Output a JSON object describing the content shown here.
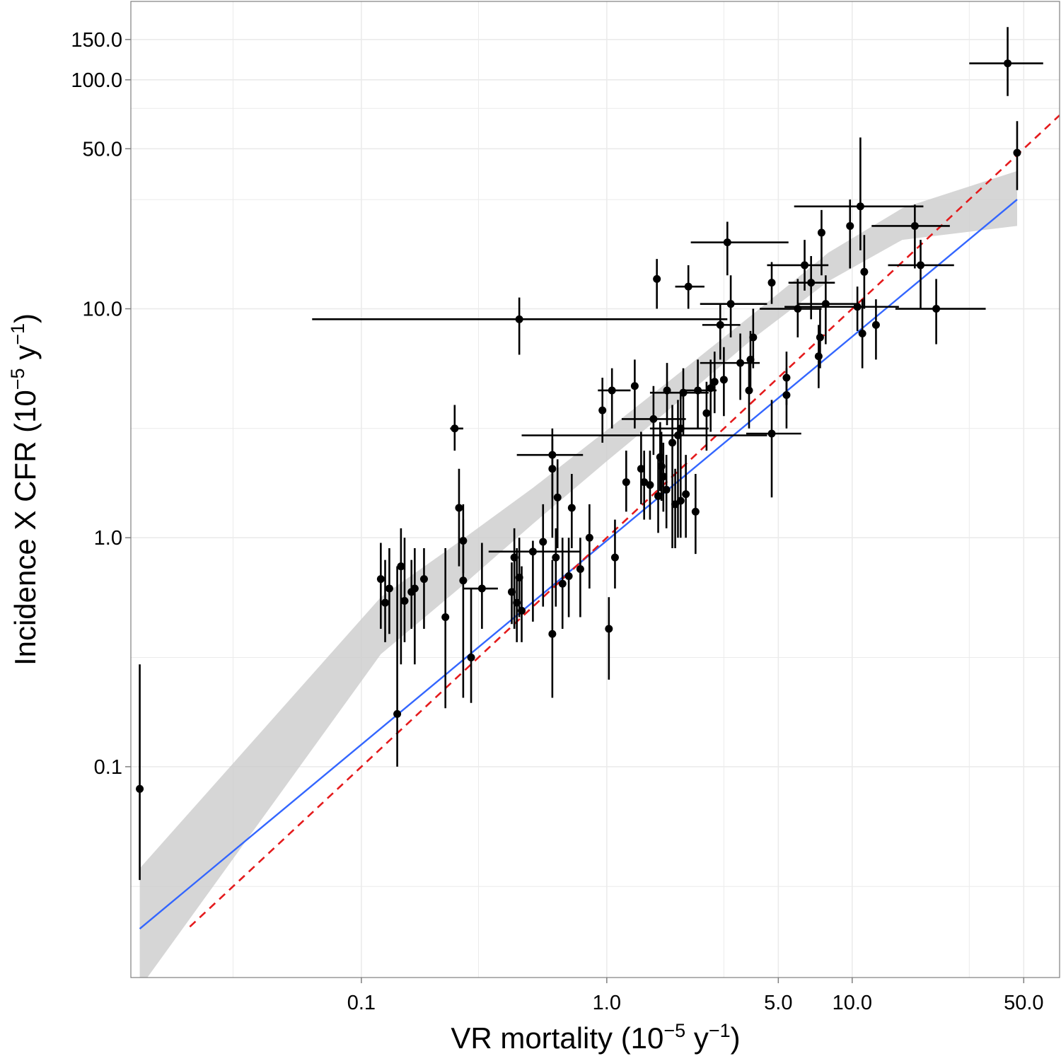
{
  "chart_data": {
    "type": "scatter",
    "xscale": "log10",
    "yscale": "log10",
    "xlim": [
      0.0115,
      70
    ],
    "ylim": [
      0.012,
      220
    ],
    "x_ticks": [
      0.1,
      1.0,
      5.0,
      10.0,
      50.0
    ],
    "x_tick_labels": [
      "0.1",
      "1.0",
      "5.0",
      "10.0",
      "50.0"
    ],
    "y_ticks": [
      0.1,
      1.0,
      10.0,
      50.0,
      100.0,
      150.0
    ],
    "y_tick_labels": [
      "0.1",
      "1.0",
      "10.0",
      "50.0",
      "100.0",
      "150.0"
    ],
    "xlabel": {
      "main": "VR mortality (10",
      "exp1": "−5",
      "mid": " y",
      "exp2": "−1",
      "end": ")"
    },
    "ylabel": {
      "main": "Incidence X CFR (10",
      "exp1": "−5",
      "mid": " y",
      "exp2": "−1",
      "end": ")"
    },
    "grid": true,
    "colors": {
      "points": "#000000",
      "fit_line": "#3366ff",
      "confidence_band": "#cccccc",
      "identity_line": "#e41a1c",
      "grid": "#ebebeb",
      "panel_border": "#7f7f7f"
    },
    "fit_line": {
      "x": [
        0.0125,
        47
      ],
      "y": [
        0.0196,
        30.0
      ]
    },
    "confidence_band": {
      "x": [
        0.0125,
        0.12,
        0.25,
        0.5,
        1.0,
        2.0,
        4.0,
        8.0,
        16.0,
        47.0
      ],
      "lower": [
        0.0108,
        0.31,
        0.6,
        1.15,
        2.16,
        4.0,
        7.5,
        13.2,
        20.0,
        23.0
      ],
      "upper": [
        0.036,
        0.55,
        0.96,
        1.65,
        2.95,
        5.3,
        9.6,
        17.6,
        27.5,
        40.0
      ]
    },
    "identity_line": {
      "x": [
        0.02,
        70
      ],
      "y": [
        0.02,
        70
      ]
    },
    "points": [
      {
        "x": 0.0125,
        "y": 0.08,
        "ylo": 0.032,
        "yhi": 0.28
      },
      {
        "x": 0.12,
        "y": 0.66,
        "ylo": 0.4,
        "yhi": 0.95
      },
      {
        "x": 0.125,
        "y": 0.52,
        "ylo": 0.35,
        "yhi": 0.8
      },
      {
        "x": 0.13,
        "y": 0.6,
        "ylo": 0.38,
        "yhi": 0.9
      },
      {
        "x": 0.14,
        "y": 0.17,
        "ylo": 0.1,
        "yhi": 0.75
      },
      {
        "x": 0.145,
        "y": 0.75,
        "ylo": 0.28,
        "yhi": 1.1
      },
      {
        "x": 0.15,
        "y": 0.53,
        "ylo": 0.35,
        "yhi": 1.0
      },
      {
        "x": 0.16,
        "y": 0.58,
        "ylo": 0.4,
        "yhi": 0.8
      },
      {
        "x": 0.165,
        "y": 0.6,
        "ylo": 0.28,
        "yhi": 0.9
      },
      {
        "x": 0.18,
        "y": 0.66,
        "ylo": 0.4,
        "yhi": 0.9
      },
      {
        "x": 0.22,
        "y": 0.45,
        "ylo": 0.18,
        "yhi": 0.9
      },
      {
        "x": 0.24,
        "y": 3.0,
        "ylo": 2.4,
        "yhi": 3.8,
        "xlo": 0.23,
        "xhi": 0.26
      },
      {
        "x": 0.25,
        "y": 1.35,
        "ylo": 0.75,
        "yhi": 2.0
      },
      {
        "x": 0.26,
        "y": 0.97,
        "ylo": 0.7,
        "yhi": 1.4
      },
      {
        "x": 0.26,
        "y": 0.65,
        "ylo": 0.2,
        "yhi": 1.2
      },
      {
        "x": 0.28,
        "y": 0.3,
        "ylo": 0.19,
        "yhi": 0.6
      },
      {
        "x": 0.31,
        "y": 0.6,
        "ylo": 0.4,
        "yhi": 0.95,
        "xlo": 0.26,
        "xhi": 0.36
      },
      {
        "x": 0.41,
        "y": 0.58,
        "ylo": 0.42,
        "yhi": 0.78
      },
      {
        "x": 0.42,
        "y": 0.82,
        "ylo": 0.4,
        "yhi": 1.1
      },
      {
        "x": 0.43,
        "y": 0.52,
        "ylo": 0.35,
        "yhi": 0.9
      },
      {
        "x": 0.44,
        "y": 9.0,
        "ylo": 6.3,
        "yhi": 11.2,
        "xlo": 0.063,
        "xhi": 3.1
      },
      {
        "x": 0.44,
        "y": 0.67,
        "ylo": 0.45,
        "yhi": 1.0
      },
      {
        "x": 0.45,
        "y": 0.48,
        "ylo": 0.35,
        "yhi": 0.75
      },
      {
        "x": 0.5,
        "y": 0.87,
        "ylo": 0.43,
        "yhi": 0.97,
        "xlo": 0.33,
        "xhi": 0.78
      },
      {
        "x": 0.55,
        "y": 0.96,
        "ylo": 0.5,
        "yhi": 1.4
      },
      {
        "x": 0.6,
        "y": 2.3,
        "ylo": 1.5,
        "yhi": 2.7,
        "xlo": 0.43,
        "xhi": 0.8
      },
      {
        "x": 0.6,
        "y": 2.0,
        "ylo": 1.0,
        "yhi": 3.0
      },
      {
        "x": 0.6,
        "y": 0.38,
        "ylo": 0.2,
        "yhi": 0.8
      },
      {
        "x": 0.62,
        "y": 0.82,
        "ylo": 0.5,
        "yhi": 1.1
      },
      {
        "x": 0.63,
        "y": 1.5,
        "ylo": 0.9,
        "yhi": 2.2
      },
      {
        "x": 0.66,
        "y": 0.63,
        "ylo": 0.4,
        "yhi": 1.0
      },
      {
        "x": 0.7,
        "y": 0.68,
        "ylo": 0.45,
        "yhi": 1.0
      },
      {
        "x": 0.72,
        "y": 1.35,
        "ylo": 0.9,
        "yhi": 1.9
      },
      {
        "x": 0.78,
        "y": 0.73,
        "ylo": 0.45,
        "yhi": 1.0
      },
      {
        "x": 0.85,
        "y": 1.0,
        "ylo": 0.6,
        "yhi": 1.4
      },
      {
        "x": 0.96,
        "y": 3.6,
        "ylo": 2.6,
        "yhi": 5.0
      },
      {
        "x": 1.02,
        "y": 0.4,
        "ylo": 0.24,
        "yhi": 0.55
      },
      {
        "x": 1.05,
        "y": 4.4,
        "ylo": 3.0,
        "yhi": 5.5,
        "xlo": 0.92,
        "xhi": 1.25
      },
      {
        "x": 1.08,
        "y": 0.82,
        "ylo": 0.6,
        "yhi": 1.2
      },
      {
        "x": 1.2,
        "y": 1.75,
        "ylo": 1.3,
        "yhi": 2.4
      },
      {
        "x": 1.3,
        "y": 4.6,
        "ylo": 3.0,
        "yhi": 6.0
      },
      {
        "x": 1.38,
        "y": 2.0,
        "ylo": 1.4,
        "yhi": 2.9
      },
      {
        "x": 1.42,
        "y": 1.75,
        "ylo": 1.2,
        "yhi": 2.4
      },
      {
        "x": 1.5,
        "y": 1.7,
        "ylo": 1.2,
        "yhi": 2.4
      },
      {
        "x": 1.55,
        "y": 3.3,
        "ylo": 2.3,
        "yhi": 4.6,
        "xlo": 1.15,
        "xhi": 2.1
      },
      {
        "x": 1.6,
        "y": 13.5,
        "ylo": 10.0,
        "yhi": 16.5
      },
      {
        "x": 1.62,
        "y": 1.52,
        "ylo": 1.05,
        "yhi": 2.2
      },
      {
        "x": 1.65,
        "y": 2.25,
        "ylo": 1.6,
        "yhi": 3.2
      },
      {
        "x": 1.67,
        "y": 2.05,
        "ylo": 1.45,
        "yhi": 2.9
      },
      {
        "x": 1.7,
        "y": 1.85,
        "ylo": 1.3,
        "yhi": 2.6
      },
      {
        "x": 1.75,
        "y": 1.62,
        "ylo": 1.1,
        "yhi": 2.3
      },
      {
        "x": 1.76,
        "y": 4.4,
        "ylo": 3.1,
        "yhi": 5.8
      },
      {
        "x": 1.85,
        "y": 2.6,
        "ylo": 0.9,
        "yhi": 3.8
      },
      {
        "x": 1.9,
        "y": 1.4,
        "ylo": 0.9,
        "yhi": 2.0
      },
      {
        "x": 1.95,
        "y": 2.8,
        "ylo": 1.0,
        "yhi": 4.0,
        "xlo": 0.45,
        "xhi": 4.5
      },
      {
        "x": 2.0,
        "y": 1.45,
        "ylo": 1.0,
        "yhi": 2.1
      },
      {
        "x": 2.0,
        "y": 3.0,
        "ylo": 2.0,
        "yhi": 4.3,
        "xlo": 1.5,
        "xhi": 2.6
      },
      {
        "x": 2.05,
        "y": 4.3,
        "ylo": 2.8,
        "yhi": 5.5,
        "xlo": 1.5,
        "xhi": 2.6
      },
      {
        "x": 2.1,
        "y": 1.55,
        "ylo": 1.0,
        "yhi": 2.3
      },
      {
        "x": 2.15,
        "y": 12.5,
        "ylo": 10.0,
        "yhi": 15.5,
        "xlo": 1.9,
        "xhi": 2.5
      },
      {
        "x": 2.3,
        "y": 1.3,
        "ylo": 0.85,
        "yhi": 1.9
      },
      {
        "x": 2.35,
        "y": 4.4,
        "ylo": 3.0,
        "yhi": 6.0,
        "xlo": 2.0,
        "xhi": 2.8
      },
      {
        "x": 2.55,
        "y": 3.5,
        "ylo": 2.4,
        "yhi": 4.8
      },
      {
        "x": 2.65,
        "y": 4.5,
        "ylo": 2.9,
        "yhi": 6.0
      },
      {
        "x": 2.75,
        "y": 4.8,
        "ylo": 3.5,
        "yhi": 6.5
      },
      {
        "x": 2.9,
        "y": 8.5,
        "ylo": 6.0,
        "yhi": 10.5,
        "xlo": 2.45,
        "xhi": 3.5
      },
      {
        "x": 3.0,
        "y": 4.9,
        "ylo": 3.4,
        "yhi": 6.8
      },
      {
        "x": 3.1,
        "y": 19.5,
        "ylo": 14.0,
        "yhi": 24.0,
        "xlo": 2.2,
        "xhi": 5.5
      },
      {
        "x": 3.2,
        "y": 10.5,
        "ylo": 7.5,
        "yhi": 14.0,
        "xlo": 2.4,
        "xhi": 4.5
      },
      {
        "x": 3.5,
        "y": 5.8,
        "ylo": 4.0,
        "yhi": 7.8,
        "xlo": 2.4,
        "xhi": 4.2
      },
      {
        "x": 3.8,
        "y": 4.4,
        "ylo": 3.0,
        "yhi": 6.0
      },
      {
        "x": 3.85,
        "y": 6.0,
        "ylo": 4.3,
        "yhi": 8.0
      },
      {
        "x": 3.95,
        "y": 7.5,
        "ylo": 5.5,
        "yhi": 10.0
      },
      {
        "x": 4.7,
        "y": 13.0,
        "ylo": 10.5,
        "yhi": 16.0
      },
      {
        "x": 4.7,
        "y": 2.85,
        "ylo": 1.5,
        "yhi": 4.0,
        "xlo": 3.7,
        "xhi": 6.2
      },
      {
        "x": 5.4,
        "y": 5.0,
        "ylo": 3.8,
        "yhi": 6.5
      },
      {
        "x": 5.4,
        "y": 4.2,
        "ylo": 3.0,
        "yhi": 5.5
      },
      {
        "x": 6.0,
        "y": 10.0,
        "ylo": 7.5,
        "yhi": 13.5,
        "xlo": 4.2,
        "xhi": 7.5
      },
      {
        "x": 6.4,
        "y": 15.5,
        "ylo": 12.0,
        "yhi": 20.0,
        "xlo": 4.5,
        "xhi": 8.0
      },
      {
        "x": 6.8,
        "y": 13.0,
        "ylo": 9.0,
        "yhi": 17.0,
        "xlo": 5.5,
        "xhi": 8.5
      },
      {
        "x": 7.3,
        "y": 6.2,
        "ylo": 4.5,
        "yhi": 8.5
      },
      {
        "x": 7.4,
        "y": 7.5,
        "ylo": 5.5,
        "yhi": 10.0
      },
      {
        "x": 7.5,
        "y": 21.5,
        "ylo": 14.0,
        "yhi": 27.0
      },
      {
        "x": 7.8,
        "y": 10.5,
        "ylo": 7.0,
        "yhi": 14.0,
        "xlo": 6.0,
        "xhi": 10.5
      },
      {
        "x": 9.8,
        "y": 23.0,
        "ylo": 15.0,
        "yhi": 30.0
      },
      {
        "x": 10.5,
        "y": 10.2,
        "ylo": 8.0,
        "yhi": 12.5,
        "xlo": 5.3,
        "xhi": 15.5
      },
      {
        "x": 10.8,
        "y": 28.0,
        "ylo": 18.0,
        "yhi": 56.0,
        "xlo": 5.8,
        "xhi": 19.5
      },
      {
        "x": 11.0,
        "y": 7.8,
        "ylo": 5.5,
        "yhi": 11.0
      },
      {
        "x": 11.2,
        "y": 14.5,
        "ylo": 10.0,
        "yhi": 21.0
      },
      {
        "x": 12.5,
        "y": 8.5,
        "ylo": 6.0,
        "yhi": 11.0
      },
      {
        "x": 18.0,
        "y": 23.0,
        "ylo": 15.0,
        "yhi": 28.5,
        "xlo": 12.0,
        "xhi": 25.0
      },
      {
        "x": 19.0,
        "y": 15.5,
        "ylo": 10.0,
        "yhi": 20.0,
        "xlo": 14.0,
        "xhi": 26.0
      },
      {
        "x": 22.0,
        "y": 10.0,
        "ylo": 7.0,
        "yhi": 13.5,
        "xlo": 15.0,
        "xhi": 35.0
      },
      {
        "x": 43.0,
        "y": 118.0,
        "ylo": 85.0,
        "yhi": 170.0,
        "xlo": 30.0,
        "xhi": 60.0
      },
      {
        "x": 47.0,
        "y": 48.0,
        "ylo": 33.0,
        "yhi": 66.0
      }
    ]
  }
}
